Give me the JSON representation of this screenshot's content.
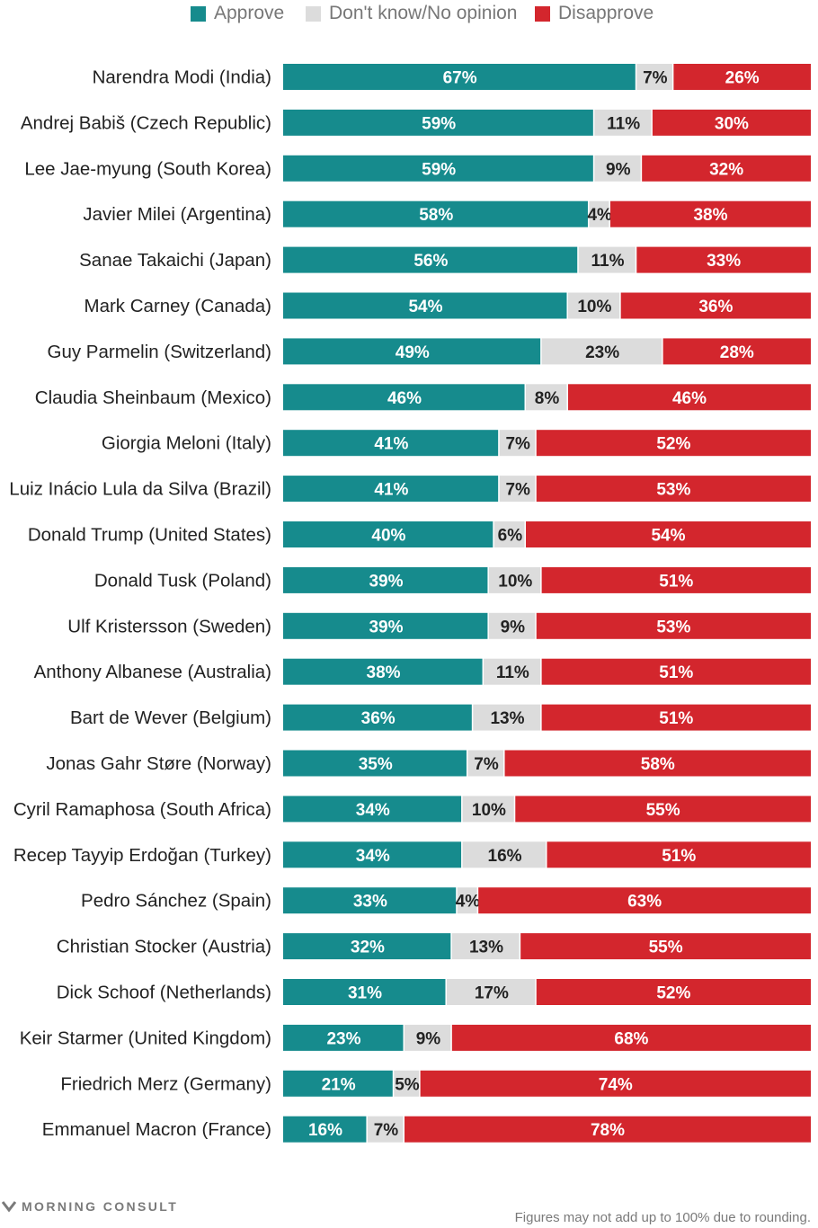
{
  "legend": {
    "approve": "Approve",
    "no_opinion": "Don't know/No opinion",
    "disapprove": "Disapprove"
  },
  "colors": {
    "approve": "#168b8d",
    "no_opinion": "#dcdcdc",
    "disapprove": "#d3262d"
  },
  "chart_data": {
    "type": "bar",
    "orientation": "horizontal",
    "stacked": true,
    "unit": "%",
    "categories": [
      "Narendra Modi (India)",
      "Andrej Babiš (Czech Republic)",
      "Lee Jae-myung (South Korea)",
      "Javier Milei (Argentina)",
      "Sanae Takaichi (Japan)",
      "Mark Carney (Canada)",
      "Guy Parmelin (Switzerland)",
      "Claudia Sheinbaum (Mexico)",
      "Giorgia Meloni (Italy)",
      "Luiz Inácio Lula da Silva (Brazil)",
      "Donald Trump (United States)",
      "Donald Tusk (Poland)",
      "Ulf Kristersson (Sweden)",
      "Anthony Albanese (Australia)",
      "Bart de Wever (Belgium)",
      "Jonas Gahr Støre (Norway)",
      "Cyril Ramaphosa (South Africa)",
      "Recep Tayyip Erdoğan (Turkey)",
      "Pedro Sánchez (Spain)",
      "Christian Stocker (Austria)",
      "Dick Schoof (Netherlands)",
      "Keir Starmer (United Kingdom)",
      "Friedrich Merz (Germany)",
      "Emmanuel Macron (France)"
    ],
    "series": [
      {
        "name": "Approve",
        "key": "approve",
        "values": [
          67,
          59,
          59,
          58,
          56,
          54,
          49,
          46,
          41,
          41,
          40,
          39,
          39,
          38,
          36,
          35,
          34,
          34,
          33,
          32,
          31,
          23,
          21,
          16
        ]
      },
      {
        "name": "Don't know/No opinion",
        "key": "no_opinion",
        "values": [
          7,
          11,
          9,
          4,
          11,
          10,
          23,
          8,
          7,
          7,
          6,
          10,
          9,
          11,
          13,
          7,
          10,
          16,
          4,
          13,
          17,
          9,
          5,
          7
        ]
      },
      {
        "name": "Disapprove",
        "key": "disapprove",
        "values": [
          26,
          30,
          32,
          38,
          33,
          36,
          28,
          46,
          52,
          53,
          54,
          51,
          53,
          51,
          51,
          58,
          55,
          51,
          63,
          55,
          52,
          68,
          74,
          78
        ]
      }
    ],
    "xlim": [
      0,
      100
    ],
    "legend_position": "top-center",
    "grid": false
  },
  "footer": {
    "brand": "MORNING CONSULT",
    "note": "Figures may not add up to 100% due to rounding."
  }
}
